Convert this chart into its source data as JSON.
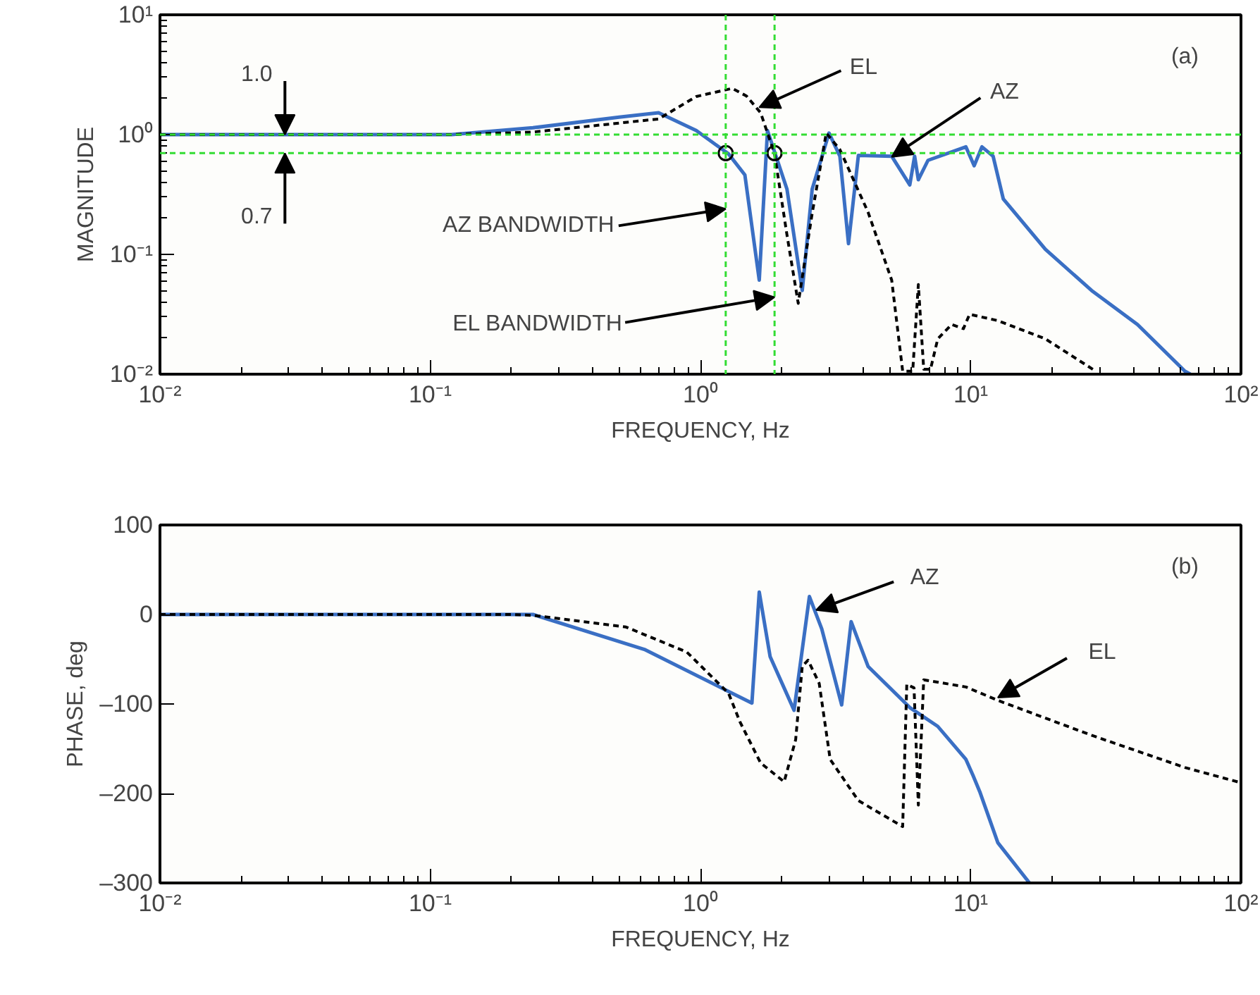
{
  "chart_data": [
    {
      "type": "line",
      "xlabel": "FREQUENCY, Hz",
      "ylabel": "MAGNITUDE",
      "log": "xy",
      "xlim": [
        0.01,
        100
      ],
      "ylim": [
        0.01,
        10
      ],
      "xticks": [
        {
          "value": 0.01,
          "label": "10⁻²"
        },
        {
          "value": 0.1,
          "label": "10⁻¹"
        },
        {
          "value": 1,
          "label": "10⁰"
        },
        {
          "value": 10,
          "label": "10¹"
        },
        {
          "value": 100,
          "label": "10²"
        }
      ],
      "yticks": [
        {
          "value": 0.01,
          "label": "10⁻²"
        },
        {
          "value": 0.1,
          "label": "10⁻¹"
        },
        {
          "value": 1,
          "label": "10⁰"
        },
        {
          "value": 10,
          "label": "10¹"
        }
      ],
      "series": [
        {
          "color": "#3a6fc4",
          "line_style": "solid",
          "x": [
            0.01,
            0.12,
            0.24,
            0.5,
            0.7,
            0.965,
            1.27,
            1.46,
            1.65,
            1.77,
            2.09,
            2.38,
            2.59,
            2.99,
            3.28,
            3.53,
            3.84,
            5.1,
            5.95,
            6.2,
            6.4,
            6.95,
            9.6,
            10.3,
            11.0,
            12.1,
            13.2,
            18.9,
            28,
            41.4,
            62,
            65
          ],
          "values": [
            1.0,
            1.0,
            1.14,
            1.4,
            1.52,
            1.08,
            0.69,
            0.46,
            0.061,
            1.08,
            0.35,
            0.05,
            0.35,
            1.03,
            0.66,
            0.123,
            0.67,
            0.66,
            0.38,
            0.66,
            0.42,
            0.61,
            0.79,
            0.55,
            0.79,
            0.66,
            0.29,
            0.11,
            0.05,
            0.026,
            0.0106,
            0.01
          ]
        },
        {
          "color": "#000000",
          "line_style": "dashed",
          "x": [
            0.01,
            0.12,
            0.24,
            0.7,
            0.965,
            1.31,
            1.48,
            1.67,
            1.88,
            2.09,
            2.3,
            2.59,
            2.92,
            3.28,
            4.17,
            5.1,
            5.6,
            6.1,
            6.4,
            6.7,
            7.1,
            7.55,
            8.5,
            9.4,
            9.9,
            12.6,
            18.9,
            29
          ],
          "values": [
            1.0,
            1.0,
            1.05,
            1.35,
            2.08,
            2.43,
            2.1,
            1.52,
            0.69,
            0.145,
            0.039,
            0.22,
            1.03,
            0.75,
            0.225,
            0.061,
            0.0106,
            0.0106,
            0.056,
            0.011,
            0.011,
            0.0197,
            0.026,
            0.024,
            0.0316,
            0.028,
            0.0197,
            0.0106
          ]
        },
        {
          "type": "scatter",
          "marker": "circle",
          "color": "#000000",
          "x": [
            1.24,
            1.88
          ],
          "values": [
            0.7,
            0.7
          ]
        }
      ],
      "ref_lines": [
        {
          "axis": "y",
          "value": 1.0,
          "color": "#33dd33",
          "line_style": "dashed"
        },
        {
          "axis": "y",
          "value": 0.7,
          "color": "#33dd33",
          "line_style": "dashed"
        },
        {
          "axis": "x",
          "value": 1.24,
          "color": "#33dd33",
          "line_style": "dashed"
        },
        {
          "axis": "x",
          "value": 1.88,
          "color": "#33dd33",
          "line_style": "dashed"
        }
      ],
      "annotations": [
        {
          "text": "1.0",
          "x": 0.029,
          "y": 1.0
        },
        {
          "text": "0.7",
          "x": 0.029,
          "y": 0.7
        },
        {
          "text": "AZ BANDWIDTH",
          "x": 1.24,
          "y": 0.24
        },
        {
          "text": "EL BANDWIDTH",
          "x": 1.88,
          "y": 0.044
        },
        {
          "text": "EL",
          "x": 1.65,
          "y": 1.69
        },
        {
          "text": "AZ",
          "x": 5.1,
          "y": 0.65
        },
        "(a)"
      ]
    },
    {
      "type": "line",
      "xlabel": "FREQUENCY, Hz",
      "ylabel": "PHASE, deg",
      "log": "x",
      "xlim": [
        0.01,
        100
      ],
      "ylim": [
        -300,
        100
      ],
      "xticks": [
        {
          "value": 0.01,
          "label": "10⁻²"
        },
        {
          "value": 0.1,
          "label": "10⁻¹"
        },
        {
          "value": 1,
          "label": "10⁰"
        },
        {
          "value": 10,
          "label": "10¹"
        },
        {
          "value": 100,
          "label": "10²"
        }
      ],
      "yticks": [
        {
          "value": -300,
          "label": "–300"
        },
        {
          "value": -200,
          "label": "–200"
        },
        {
          "value": -100,
          "label": "–100"
        },
        0,
        100
      ],
      "series": [
        {
          "color": "#3a6fc4",
          "line_style": "solid",
          "x": [
            0.01,
            0.2,
            0.24,
            0.62,
            1.27,
            1.55,
            1.65,
            1.81,
            2.22,
            2.53,
            2.81,
            3.33,
            3.61,
            4.17,
            5.95,
            7.55,
            9.6,
            10.2,
            10.8,
            12.6,
            16.5
          ],
          "values": [
            0,
            0,
            0,
            -39,
            -86,
            -99,
            25,
            -47,
            -107,
            20,
            -16,
            -101,
            -8,
            -58,
            -104,
            -125,
            -162,
            -180,
            -198,
            -255,
            -300
          ]
        },
        {
          "color": "#000000",
          "line_style": "dashed",
          "x": [
            0.01,
            0.2,
            0.24,
            0.53,
            0.89,
            1.27,
            1.4,
            1.67,
            2.04,
            2.25,
            2.38,
            2.5,
            2.75,
            3.02,
            3.84,
            5.6,
            5.8,
            6.17,
            6.4,
            6.7,
            9.6,
            12.6,
            28,
            62,
            100
          ],
          "values": [
            0,
            0,
            -1,
            -14,
            -42,
            -88,
            -120,
            -166,
            -187,
            -140,
            -58,
            -51,
            -77,
            -162,
            -208,
            -237,
            -78,
            -82,
            -213,
            -73,
            -81,
            -96,
            -135,
            -171,
            -188
          ]
        }
      ],
      "annotations": [
        {
          "text": "AZ",
          "x": 2.68,
          "y": 5
        },
        {
          "text": "EL",
          "x": 12.6,
          "y": -93
        },
        "(b)"
      ]
    }
  ]
}
